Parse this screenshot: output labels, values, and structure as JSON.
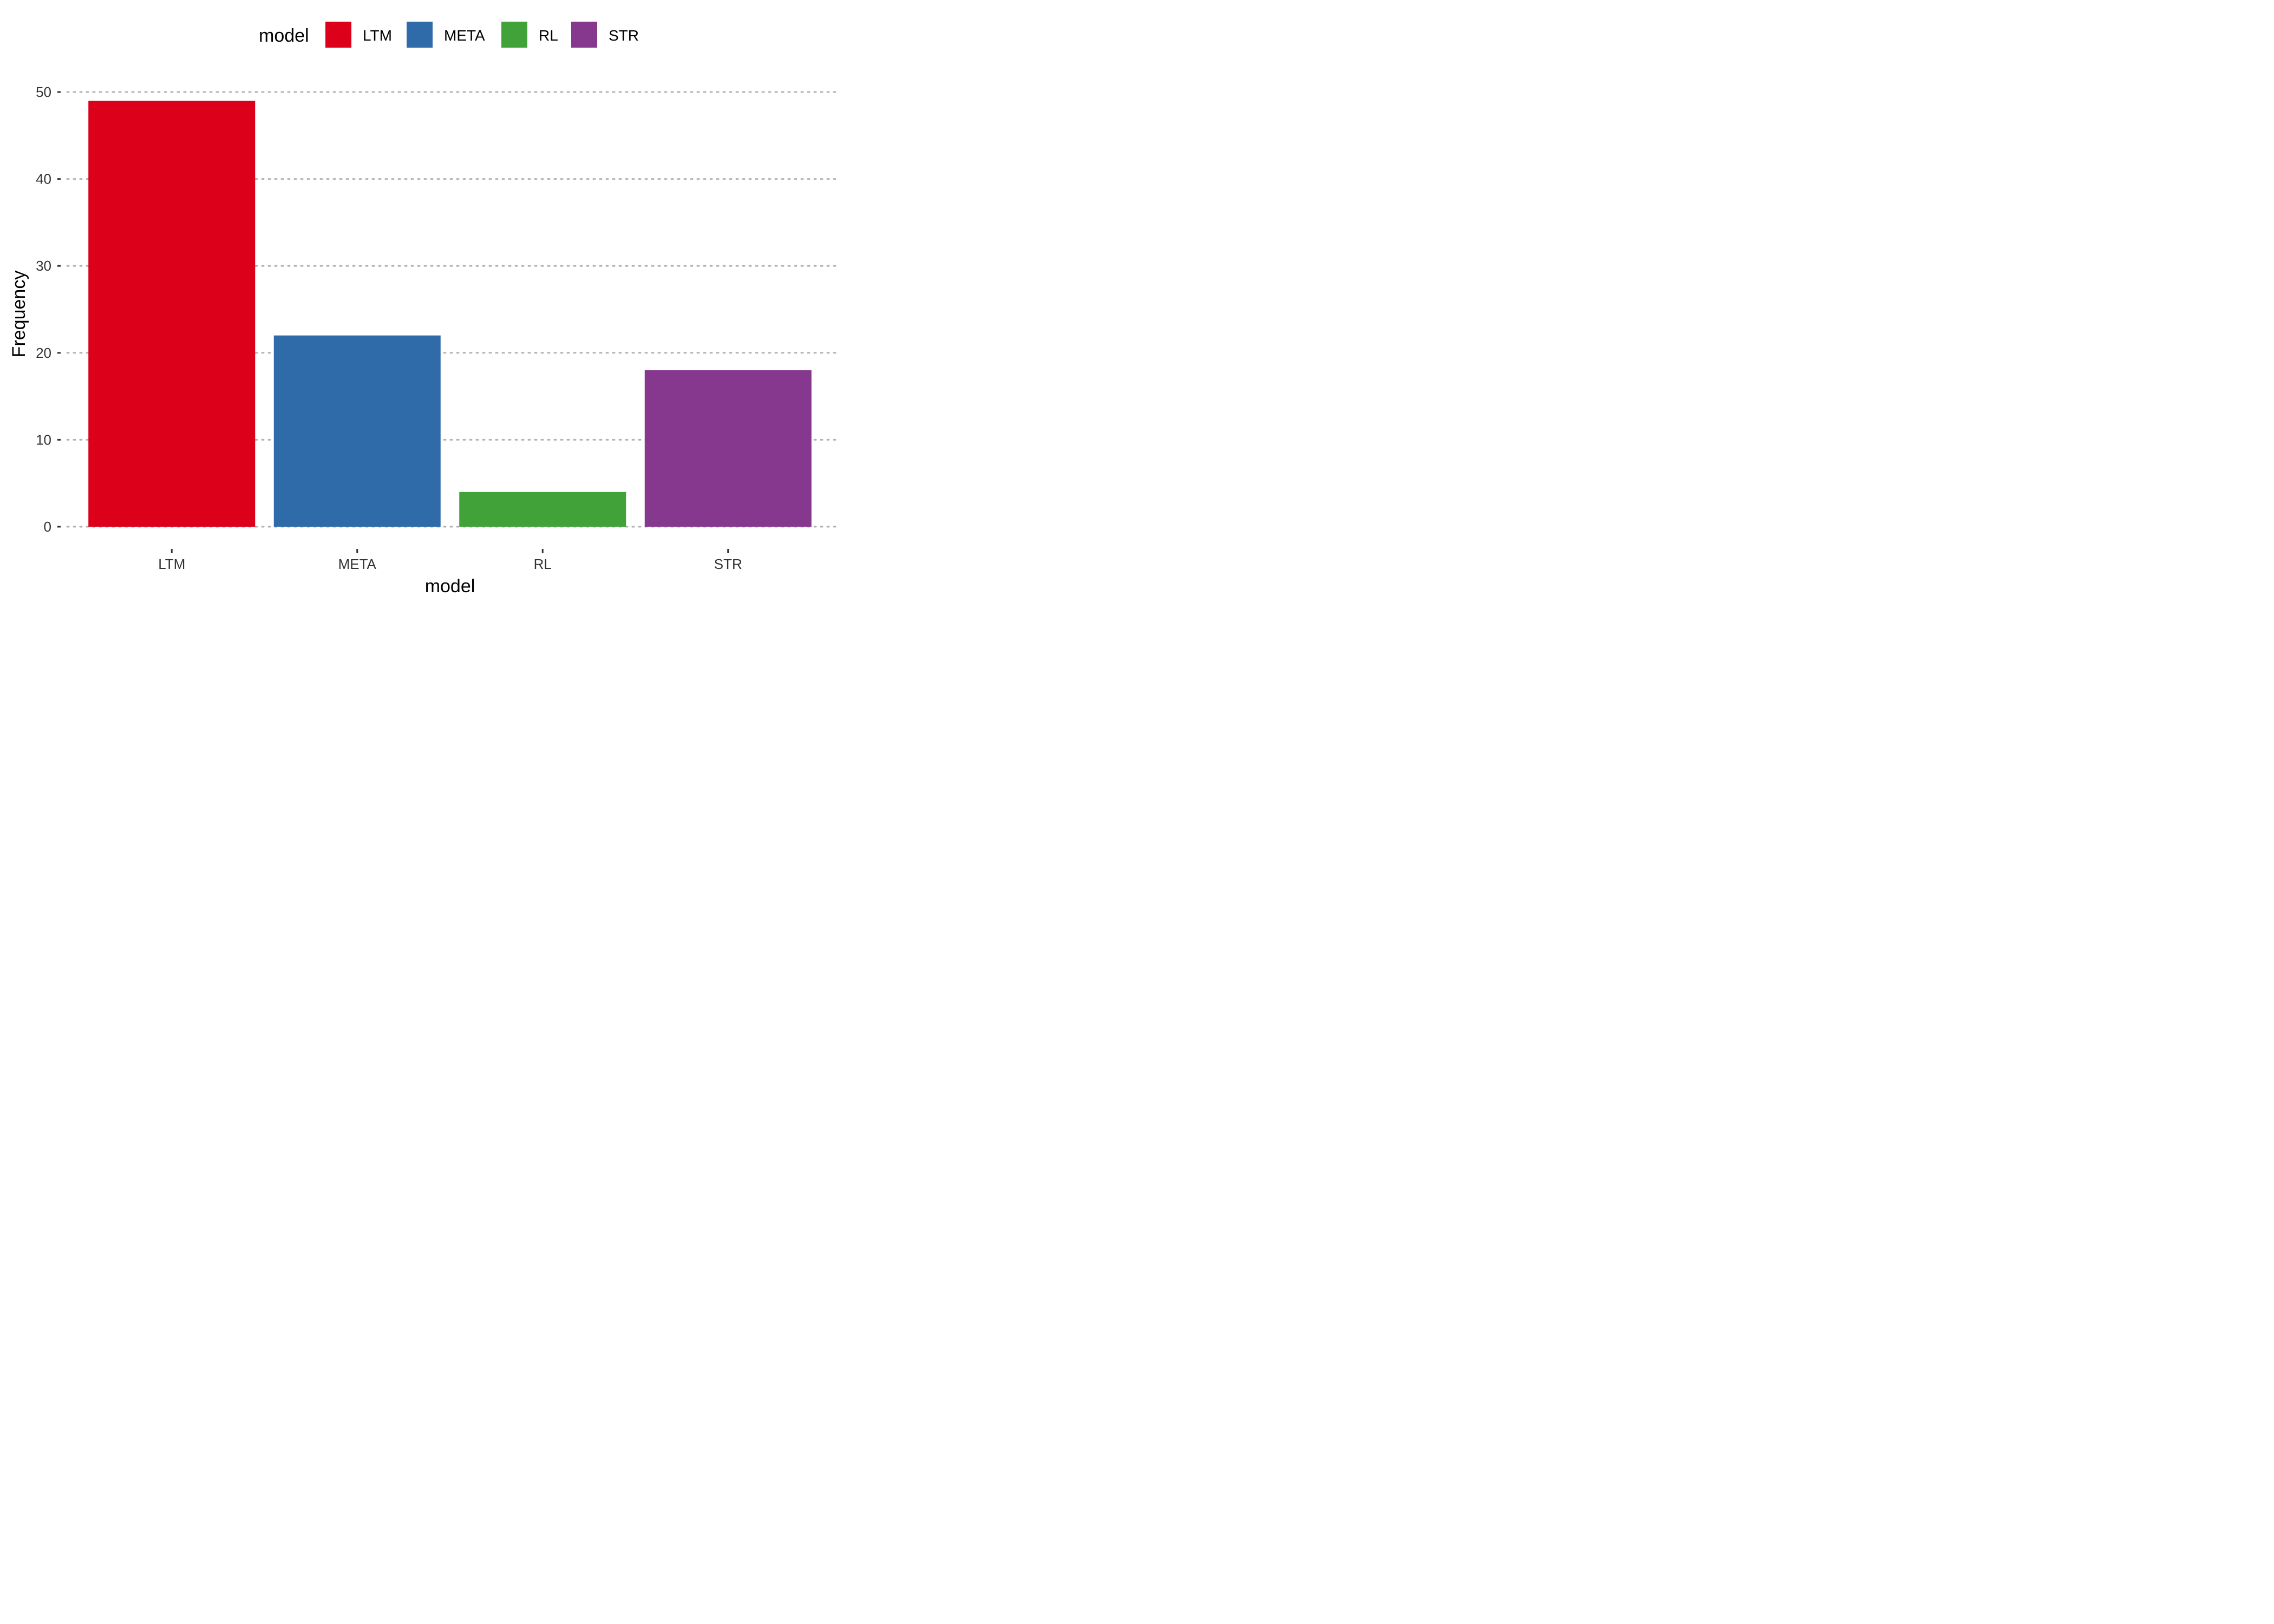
{
  "chart_data": {
    "type": "bar",
    "categories": [
      "LTM",
      "META",
      "RL",
      "STR"
    ],
    "values": [
      49,
      22,
      4,
      18
    ],
    "colors": [
      "#DC001A",
      "#2E6BA8",
      "#41A23A",
      "#86388F"
    ],
    "xlabel": "model",
    "ylabel": "Frequency",
    "ylim": [
      0,
      50
    ],
    "yticks": [
      "0",
      "10",
      "20",
      "30",
      "40",
      "50"
    ],
    "grid": "horizontal, dotted",
    "legend": {
      "title": "model",
      "position": "top",
      "entries": [
        "LTM",
        "META",
        "RL",
        "STR"
      ]
    }
  }
}
